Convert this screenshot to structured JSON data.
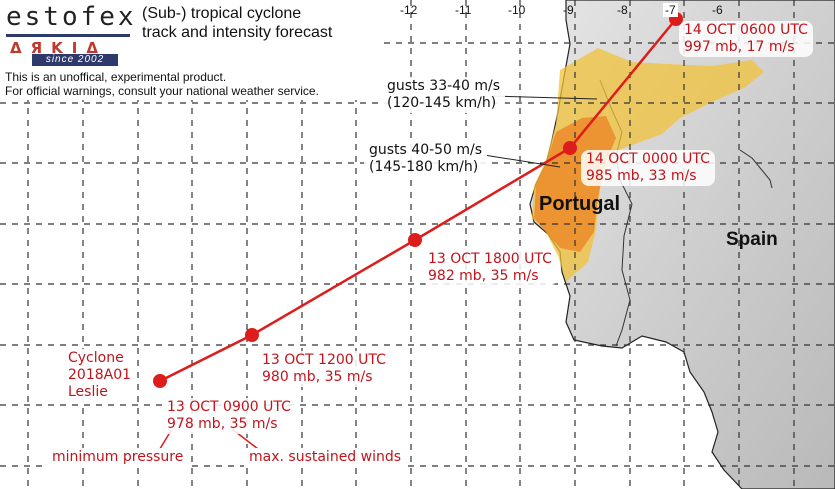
{
  "header": {
    "logo_text": "estofex",
    "logo_glyphs": "ΔЯΚΙΔ",
    "logo_since": "since 2002",
    "title_line1": "(Sub-) tropical cyclone",
    "title_line2": "track and intensity forecast",
    "disclaimer_line1": "This is an unoffical, experimental product.",
    "disclaimer_line2": "For official warnings, consult your national weather service."
  },
  "longitude_ticks": [
    "-12",
    "-11",
    "-10",
    "-9",
    "-8",
    "-7",
    "-6"
  ],
  "countries": [
    "Portugal",
    "Spain"
  ],
  "cyclone": {
    "line1": "Cyclone",
    "line2": "2018A01",
    "line3": "Leslie"
  },
  "track": [
    {
      "time": "13 OCT 0900 UTC",
      "info": "978 mb, 35 m/s"
    },
    {
      "time": "13 OCT 1200 UTC",
      "info": "980 mb, 35 m/s"
    },
    {
      "time": "13 OCT 1800 UTC",
      "info": "982 mb, 35 m/s"
    },
    {
      "time": "14 OCT 0000 UTC",
      "info": "985 mb, 33 m/s"
    },
    {
      "time": "14 OCT 0600 UTC",
      "info": "997 mb, 17 m/s"
    }
  ],
  "gusts": [
    {
      "line1": "gusts 33-40 m/s",
      "line2": "(120-145 km/h)"
    },
    {
      "line1": "gusts 40-50 m/s",
      "line2": "(145-180 km/h)"
    }
  ],
  "legend": {
    "pressure": "minimum pressure",
    "winds": "max. sustained winds"
  },
  "colors": {
    "track": "#dd1c1c",
    "gust_low": "#f2c23a",
    "gust_high": "#ec8a2a",
    "land": "#d6d6d6",
    "grid": "#333333"
  }
}
